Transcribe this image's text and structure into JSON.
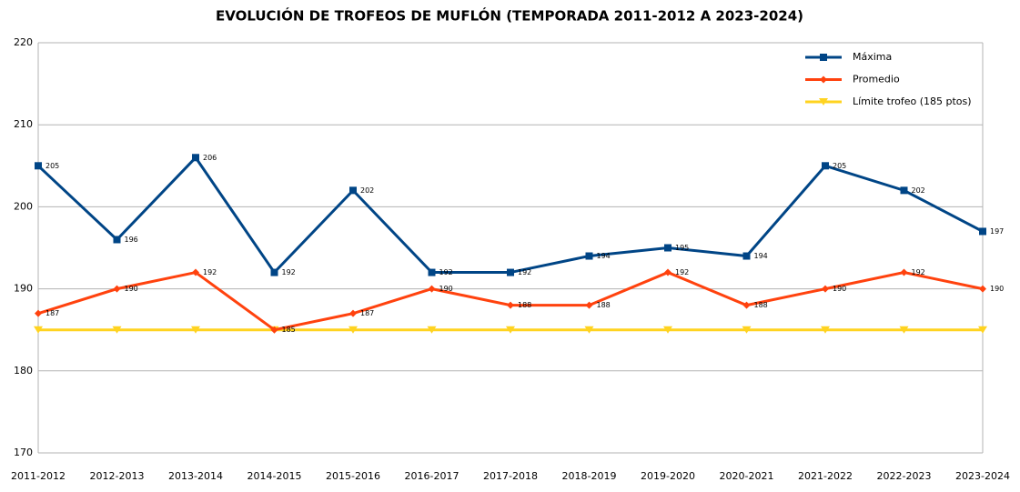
{
  "chart_data": {
    "type": "line",
    "title": "EVOLUCIÓN DE TROFEOS DE MUFLÓN (TEMPORADA 2011-2012 A 2023-2024)",
    "categories": [
      "2011-2012",
      "2012-2013",
      "2013-2014",
      "2014-2015",
      "2015-2016",
      "2016-2017",
      "2017-2018",
      "2018-2019",
      "2019-2020",
      "2020-2021",
      "2021-2022",
      "2022-2023",
      "2023-2024"
    ],
    "series": [
      {
        "name": "Máxima",
        "color": "#004586",
        "marker": "square",
        "show_labels": true,
        "values": [
          205,
          196,
          206,
          192,
          202,
          192,
          192,
          194,
          195,
          194,
          205,
          202,
          197
        ]
      },
      {
        "name": "Promedio",
        "color": "#ff420e",
        "marker": "diamond",
        "show_labels": true,
        "values": [
          187,
          190,
          192,
          185,
          187,
          190,
          188,
          188,
          192,
          188,
          190,
          192,
          190
        ]
      },
      {
        "name": "Límite trofeo (185 ptos)",
        "color": "#ffd320",
        "marker": "triangle",
        "show_labels": false,
        "values": [
          185,
          185,
          185,
          185,
          185,
          185,
          185,
          185,
          185,
          185,
          185,
          185,
          185
        ]
      }
    ],
    "ylim": [
      170,
      220
    ],
    "yticks": [
      170,
      180,
      190,
      200,
      210,
      220
    ],
    "grid": true,
    "legend": "top-right"
  }
}
